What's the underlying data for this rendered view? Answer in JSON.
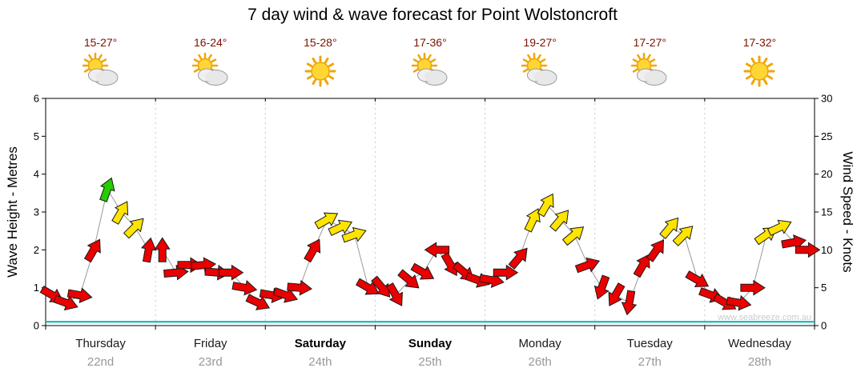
{
  "watermark": "www.seabreeze.com.au",
  "chart_data": {
    "type": "scatter",
    "subtype": "wind-arrow-forecast",
    "title": "7 day wind & wave forecast for Point Wolstoncroft",
    "left_axis": {
      "label": "Wave Height - Metres",
      "min": 0,
      "max": 6,
      "ticks": [
        0,
        1,
        2,
        3,
        4,
        5,
        6
      ]
    },
    "right_axis": {
      "label": "Wind Speed - Knots",
      "min": 0,
      "max": 30,
      "ticks": [
        0,
        5,
        10,
        15,
        20,
        25,
        30
      ]
    },
    "grid": {
      "day_separators": "dotted",
      "legend": "none"
    },
    "days": [
      {
        "name": "Thursday",
        "date": "22nd",
        "temperature": "15-27°",
        "icon": "partly-cloudy",
        "weekend": false
      },
      {
        "name": "Friday",
        "date": "23rd",
        "temperature": "16-24°",
        "icon": "partly-cloudy",
        "weekend": false
      },
      {
        "name": "Saturday",
        "date": "24th",
        "temperature": "15-28°",
        "icon": "sunny",
        "weekend": true
      },
      {
        "name": "Sunday",
        "date": "25th",
        "temperature": "17-36°",
        "icon": "partly-cloudy",
        "weekend": true
      },
      {
        "name": "Monday",
        "date": "26th",
        "temperature": "19-27°",
        "icon": "partly-cloudy",
        "weekend": false
      },
      {
        "name": "Tuesday",
        "date": "27th",
        "temperature": "17-27°",
        "icon": "partly-cloudy",
        "weekend": false
      },
      {
        "name": "Wednesday",
        "date": "28th",
        "temperature": "17-32°",
        "icon": "sunny",
        "weekend": false
      }
    ],
    "wave_height_series": {
      "constant_m": 0.1,
      "color": "#00b4b4"
    },
    "wind_arrow_colors": {
      "red": "#ea0000",
      "yellow": "#ffe400",
      "green": "#27cc00"
    },
    "colors": {
      "temperature_text": "#7b1200",
      "day_label": "#1a1a1a",
      "date_label": "#999999",
      "watermark": "#cccccc",
      "connector": "#999999"
    },
    "wind_points": [
      {
        "t": 0.0625,
        "kt": 4,
        "dir": 120,
        "c": "red"
      },
      {
        "t": 0.1875,
        "kt": 3,
        "dir": 110,
        "c": "red"
      },
      {
        "t": 0.3125,
        "kt": 4,
        "dir": 100,
        "c": "red"
      },
      {
        "t": 0.4375,
        "kt": 10,
        "dir": 30,
        "c": "red"
      },
      {
        "t": 0.5625,
        "kt": 18,
        "dir": 20,
        "c": "green"
      },
      {
        "t": 0.6875,
        "kt": 15,
        "dir": 30,
        "c": "yellow"
      },
      {
        "t": 0.8125,
        "kt": 13,
        "dir": 45,
        "c": "yellow"
      },
      {
        "t": 0.9375,
        "kt": 10,
        "dir": 10,
        "c": "red"
      },
      {
        "t": 1.0625,
        "kt": 10,
        "dir": 0,
        "c": "red"
      },
      {
        "t": 1.1875,
        "kt": 7,
        "dir": 85,
        "c": "red"
      },
      {
        "t": 1.3125,
        "kt": 8,
        "dir": 90,
        "c": "red"
      },
      {
        "t": 1.4375,
        "kt": 8,
        "dir": 85,
        "c": "red"
      },
      {
        "t": 1.5625,
        "kt": 7,
        "dir": 95,
        "c": "red"
      },
      {
        "t": 1.6875,
        "kt": 7,
        "dir": 90,
        "c": "red"
      },
      {
        "t": 1.8125,
        "kt": 5,
        "dir": 100,
        "c": "red"
      },
      {
        "t": 1.9375,
        "kt": 3,
        "dir": 115,
        "c": "red"
      },
      {
        "t": 2.0625,
        "kt": 4,
        "dir": 100,
        "c": "red"
      },
      {
        "t": 2.1875,
        "kt": 4,
        "dir": 110,
        "c": "red"
      },
      {
        "t": 2.3125,
        "kt": 5,
        "dir": 95,
        "c": "red"
      },
      {
        "t": 2.4375,
        "kt": 10,
        "dir": 30,
        "c": "red"
      },
      {
        "t": 2.5625,
        "kt": 14,
        "dir": 60,
        "c": "yellow"
      },
      {
        "t": 2.6875,
        "kt": 13,
        "dir": 65,
        "c": "yellow"
      },
      {
        "t": 2.8125,
        "kt": 12,
        "dir": 70,
        "c": "yellow"
      },
      {
        "t": 2.9375,
        "kt": 5,
        "dir": 120,
        "c": "red"
      },
      {
        "t": 3.0625,
        "kt": 5,
        "dir": 140,
        "c": "red"
      },
      {
        "t": 3.1875,
        "kt": 4,
        "dir": 150,
        "c": "red"
      },
      {
        "t": 3.3125,
        "kt": 6,
        "dir": 130,
        "c": "red"
      },
      {
        "t": 3.4375,
        "kt": 7,
        "dir": 120,
        "c": "red"
      },
      {
        "t": 3.5625,
        "kt": 10,
        "dir": 270,
        "c": "red"
      },
      {
        "t": 3.6875,
        "kt": 8,
        "dir": 150,
        "c": "red"
      },
      {
        "t": 3.8125,
        "kt": 7,
        "dir": 130,
        "c": "red"
      },
      {
        "t": 3.9375,
        "kt": 6,
        "dir": 110,
        "c": "red"
      },
      {
        "t": 4.0625,
        "kt": 6,
        "dir": 100,
        "c": "red"
      },
      {
        "t": 4.1875,
        "kt": 7,
        "dir": 90,
        "c": "red"
      },
      {
        "t": 4.3125,
        "kt": 9,
        "dir": 40,
        "c": "red"
      },
      {
        "t": 4.4375,
        "kt": 14,
        "dir": 25,
        "c": "yellow"
      },
      {
        "t": 4.5625,
        "kt": 16,
        "dir": 30,
        "c": "yellow"
      },
      {
        "t": 4.6875,
        "kt": 14,
        "dir": 40,
        "c": "yellow"
      },
      {
        "t": 4.8125,
        "kt": 12,
        "dir": 50,
        "c": "yellow"
      },
      {
        "t": 4.9375,
        "kt": 8,
        "dir": 70,
        "c": "red"
      },
      {
        "t": 5.0625,
        "kt": 5,
        "dir": 200,
        "c": "red"
      },
      {
        "t": 5.1875,
        "kt": 4,
        "dir": 210,
        "c": "red"
      },
      {
        "t": 5.3125,
        "kt": 3,
        "dir": 190,
        "c": "red"
      },
      {
        "t": 5.4375,
        "kt": 8,
        "dir": 30,
        "c": "red"
      },
      {
        "t": 5.5625,
        "kt": 10,
        "dir": 35,
        "c": "red"
      },
      {
        "t": 5.6875,
        "kt": 13,
        "dir": 40,
        "c": "yellow"
      },
      {
        "t": 5.8125,
        "kt": 12,
        "dir": 45,
        "c": "yellow"
      },
      {
        "t": 5.9375,
        "kt": 6,
        "dir": 120,
        "c": "red"
      },
      {
        "t": 6.0625,
        "kt": 4,
        "dir": 110,
        "c": "red"
      },
      {
        "t": 6.1875,
        "kt": 3,
        "dir": 120,
        "c": "red"
      },
      {
        "t": 6.3125,
        "kt": 3,
        "dir": 100,
        "c": "red"
      },
      {
        "t": 6.4375,
        "kt": 5,
        "dir": 90,
        "c": "red"
      },
      {
        "t": 6.5625,
        "kt": 12,
        "dir": 55,
        "c": "yellow"
      },
      {
        "t": 6.6875,
        "kt": 13,
        "dir": 65,
        "c": "yellow"
      },
      {
        "t": 6.8125,
        "kt": 11,
        "dir": 80,
        "c": "red"
      },
      {
        "t": 6.9375,
        "kt": 10,
        "dir": 90,
        "c": "red"
      }
    ]
  }
}
